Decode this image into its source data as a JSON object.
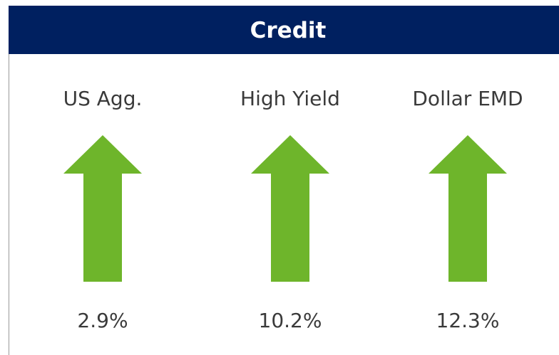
{
  "header": {
    "title": "Credit"
  },
  "items": [
    {
      "label": "US Agg.",
      "value": "2.9%"
    },
    {
      "label": "High Yield",
      "value": "10.2%"
    },
    {
      "label": "Dollar EMD",
      "value": "12.3%"
    }
  ]
}
